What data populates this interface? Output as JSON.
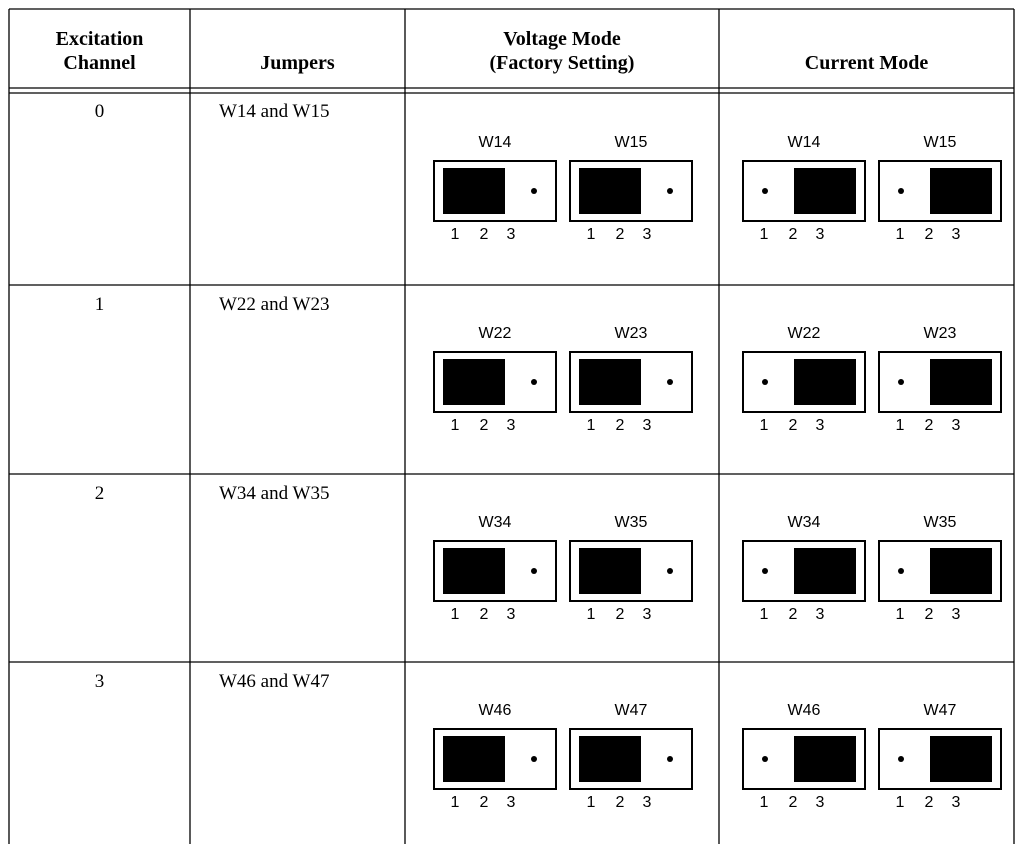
{
  "header": {
    "channel": [
      "Excitation",
      "Channel"
    ],
    "jumpers": "Jumpers",
    "voltage": [
      "Voltage Mode",
      "(Factory Setting)"
    ],
    "current": "Current Mode"
  },
  "pin_numbers": [
    "1",
    "2",
    "3"
  ],
  "modes": {
    "voltage": {
      "shunt_position": "pins 1-2"
    },
    "current": {
      "shunt_position": "pins 2-3"
    }
  },
  "rows": [
    {
      "channel": "0",
      "jumpers_text": "W14 and W15",
      "jumper_a": "W14",
      "jumper_b": "W15"
    },
    {
      "channel": "1",
      "jumpers_text": "W22 and W23",
      "jumper_a": "W22",
      "jumper_b": "W23"
    },
    {
      "channel": "2",
      "jumpers_text": "W34 and W35",
      "jumper_a": "W34",
      "jumper_b": "W35"
    },
    {
      "channel": "3",
      "jumpers_text": "W46 and W47",
      "jumper_a": "W46",
      "jumper_b": "W47"
    }
  ]
}
